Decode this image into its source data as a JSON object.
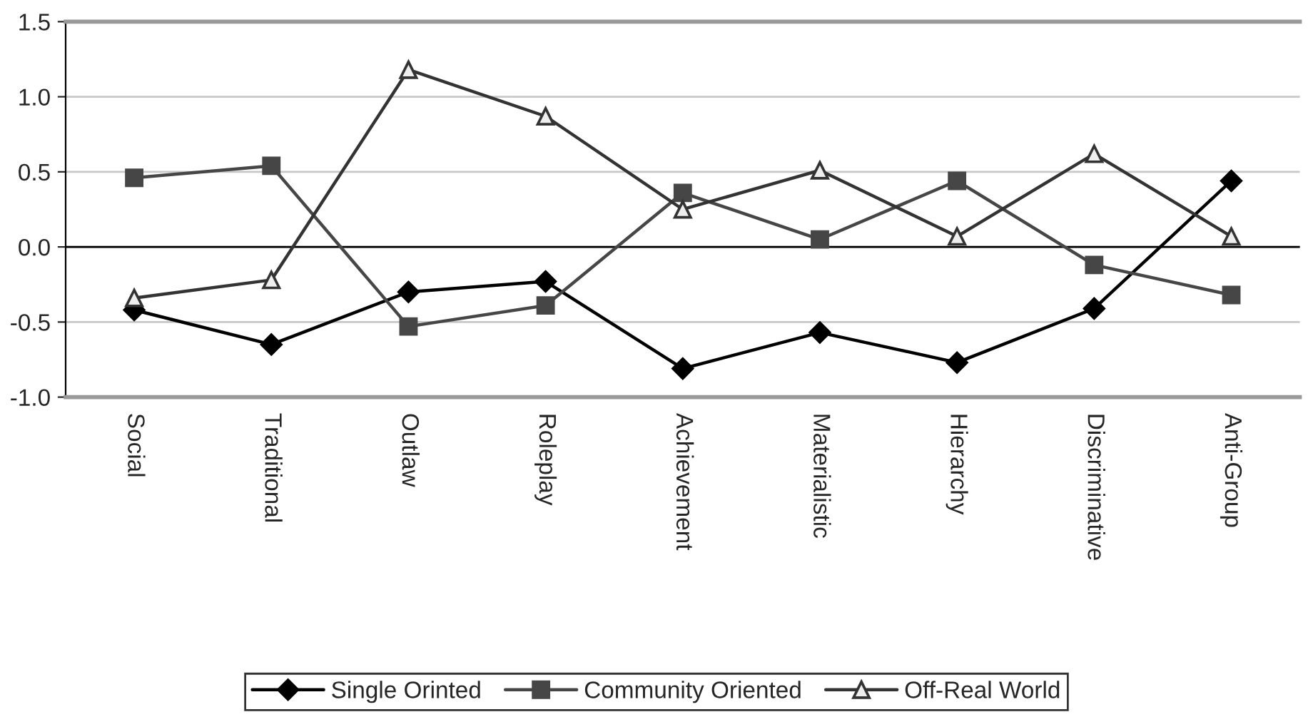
{
  "chart_data": {
    "type": "line",
    "categories": [
      "Social",
      "Traditional",
      "Outlaw",
      "Roleplay",
      "Achievement",
      "Materialistic",
      "Hierarchy",
      "Discriminative",
      "Anti-Group"
    ],
    "series": [
      {
        "name": "Single Orinted",
        "color": "#000000",
        "marker": "diamond",
        "values": [
          -0.42,
          -0.65,
          -0.3,
          -0.23,
          -0.81,
          -0.57,
          -0.77,
          -0.41,
          0.44
        ]
      },
      {
        "name": "Community Oriented",
        "color": "#464646",
        "marker": "square",
        "values": [
          0.46,
          0.54,
          -0.53,
          -0.39,
          0.36,
          0.05,
          0.44,
          -0.12,
          -0.32
        ]
      },
      {
        "name": "Off-Real World",
        "color": "#333333",
        "marker": "triangle",
        "values": [
          -0.34,
          -0.22,
          1.18,
          0.87,
          0.25,
          0.51,
          0.07,
          0.62,
          0.07
        ]
      }
    ],
    "ylim": [
      -1.0,
      1.5
    ],
    "yticks": [
      {
        "value": -1.0,
        "label": "-1.0"
      },
      {
        "value": -0.5,
        "label": "-0.5"
      },
      {
        "value": 0.0,
        "label": "0.0"
      },
      {
        "value": 0.5,
        "label": "0.5"
      },
      {
        "value": 1.0,
        "label": "1.0"
      },
      {
        "value": 1.5,
        "label": "1.5"
      }
    ],
    "grid": "y",
    "legend": "bottom",
    "line_style": "solid"
  }
}
